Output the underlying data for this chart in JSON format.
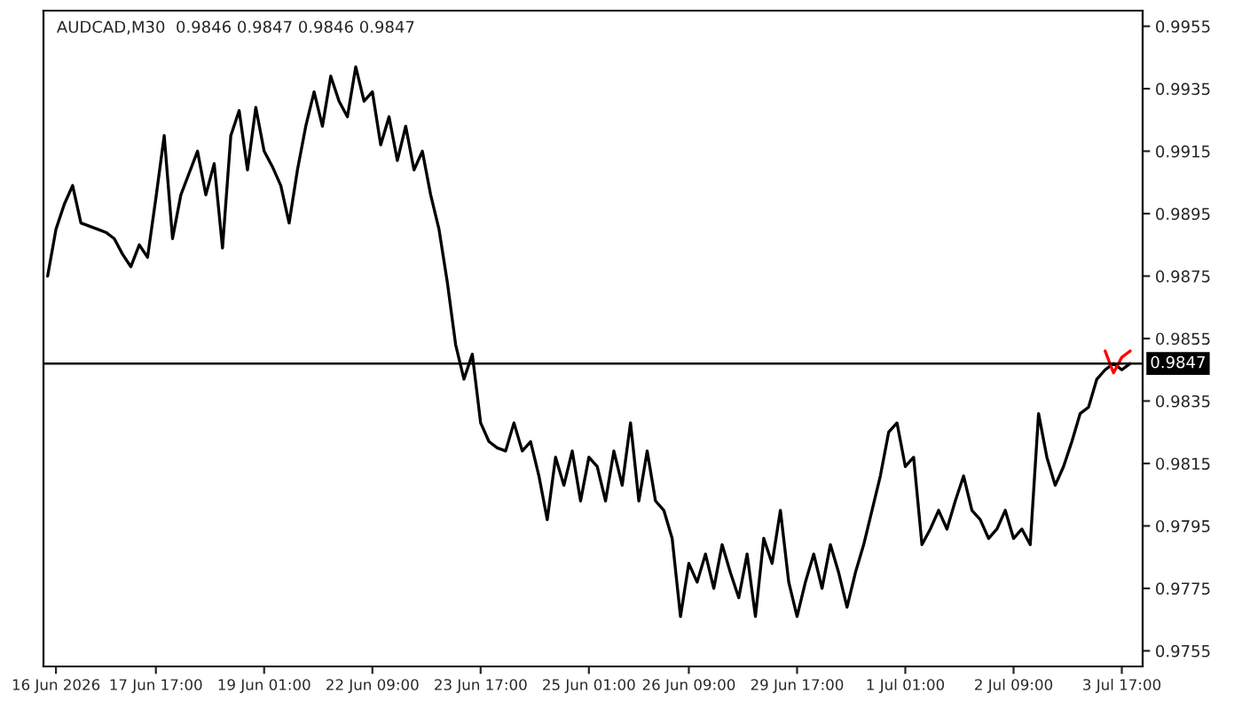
{
  "chart_data": {
    "type": "line",
    "title": "AUDCAD,M30  0.9846 0.9847 0.9846 0.9847",
    "categories": [
      null,
      "16 Jun 2026",
      null,
      null,
      null,
      null,
      null,
      null,
      null,
      null,
      null,
      null,
      null,
      "17 Jun 17:00",
      null,
      null,
      null,
      null,
      null,
      null,
      null,
      null,
      null,
      null,
      null,
      null,
      "19 Jun 01:00",
      null,
      null,
      null,
      null,
      null,
      null,
      null,
      null,
      null,
      null,
      null,
      null,
      "22 Jun 09:00",
      null,
      null,
      null,
      null,
      null,
      null,
      null,
      null,
      null,
      null,
      null,
      null,
      "23 Jun 17:00",
      null,
      null,
      null,
      null,
      null,
      null,
      null,
      null,
      null,
      null,
      null,
      null,
      "25 Jun 01:00",
      null,
      null,
      null,
      null,
      null,
      null,
      null,
      null,
      null,
      null,
      null,
      "26 Jun 09:00",
      null,
      null,
      null,
      null,
      null,
      null,
      null,
      null,
      null,
      null,
      null,
      null,
      "29 Jun 17:00",
      null,
      null,
      null,
      null,
      null,
      null,
      null,
      null,
      null,
      null,
      null,
      null,
      "1 Jul 01:00",
      null,
      null,
      null,
      null,
      null,
      null,
      null,
      null,
      null,
      null,
      null,
      null,
      "2 Jul 09:00",
      null,
      null,
      null,
      null,
      null,
      null,
      null,
      null,
      null,
      null,
      null,
      null,
      "3 Jul 17:00",
      null
    ],
    "ylim": [
      0.975,
      0.996
    ],
    "yticks": [
      0.9755,
      0.9775,
      0.9795,
      0.9815,
      0.9835,
      0.9855,
      0.9875,
      0.9895,
      0.9915,
      0.9935,
      0.9955
    ],
    "series": [
      {
        "color": "#000000",
        "values": [
          0.9875,
          0.989,
          0.9898,
          0.9904,
          0.9892,
          0.9891,
          0.989,
          0.9889,
          0.9887,
          0.9882,
          0.9878,
          0.9885,
          0.9881,
          0.99,
          0.992,
          0.9887,
          0.9901,
          0.9908,
          0.9915,
          0.9901,
          0.9911,
          0.9884,
          0.992,
          0.9928,
          0.9909,
          0.9929,
          0.9915,
          0.991,
          0.9904,
          0.9892,
          0.9909,
          0.9923,
          0.9934,
          0.9923,
          0.9939,
          0.9931,
          0.9926,
          0.9942,
          0.9931,
          0.9934,
          0.9917,
          0.9926,
          0.9912,
          0.9923,
          0.9909,
          0.9915,
          0.9901,
          0.989,
          0.9873,
          0.9853,
          0.9842,
          0.985,
          0.9828,
          0.9822,
          0.982,
          0.9819,
          0.9828,
          0.9819,
          0.9822,
          0.9811,
          0.9797,
          0.9817,
          0.9808,
          0.9819,
          0.9803,
          0.9817,
          0.9814,
          0.9803,
          0.9819,
          0.9808,
          0.9828,
          0.9803,
          0.9819,
          0.9803,
          0.98,
          0.9791,
          0.9766,
          0.9783,
          0.9777,
          0.9786,
          0.9775,
          0.9789,
          0.978,
          0.9772,
          0.9786,
          0.9766,
          0.9791,
          0.9783,
          0.98,
          0.9777,
          0.9766,
          0.9777,
          0.9786,
          0.9775,
          0.9789,
          0.978,
          0.9769,
          0.978,
          0.9789,
          0.98,
          0.9811,
          0.9825,
          0.9828,
          0.9814,
          0.9817,
          0.9789,
          0.9794,
          0.98,
          0.9794,
          0.9803,
          0.9811,
          0.98,
          0.9797,
          0.9791,
          0.9794,
          0.98,
          0.9791,
          0.9794,
          0.9789,
          0.9831,
          0.9817,
          0.9808,
          0.9814,
          0.9822,
          0.9831,
          0.9833,
          0.9842,
          0.9845,
          0.9847,
          0.9845,
          0.9847
        ]
      },
      {
        "color": "#ff0000",
        "values": [
          null,
          null,
          null,
          null,
          null,
          null,
          null,
          null,
          null,
          null,
          null,
          null,
          null,
          null,
          null,
          null,
          null,
          null,
          null,
          null,
          null,
          null,
          null,
          null,
          null,
          null,
          null,
          null,
          null,
          null,
          null,
          null,
          null,
          null,
          null,
          null,
          null,
          null,
          null,
          null,
          null,
          null,
          null,
          null,
          null,
          null,
          null,
          null,
          null,
          null,
          null,
          null,
          null,
          null,
          null,
          null,
          null,
          null,
          null,
          null,
          null,
          null,
          null,
          null,
          null,
          null,
          null,
          null,
          null,
          null,
          null,
          null,
          null,
          null,
          null,
          null,
          null,
          null,
          null,
          null,
          null,
          null,
          null,
          null,
          null,
          null,
          null,
          null,
          null,
          null,
          null,
          null,
          null,
          null,
          null,
          null,
          null,
          null,
          null,
          null,
          null,
          null,
          null,
          null,
          null,
          null,
          null,
          null,
          null,
          null,
          null,
          null,
          null,
          null,
          null,
          null,
          null,
          null,
          null,
          null,
          null,
          null,
          null,
          null,
          null,
          null,
          null,
          0.9851,
          0.9844,
          0.9849,
          0.9851
        ]
      }
    ],
    "ref_lines": [
      {
        "axis": "y",
        "value": 0.9847,
        "label": "0.9847",
        "color": "#000000"
      }
    ],
    "grid": false
  }
}
